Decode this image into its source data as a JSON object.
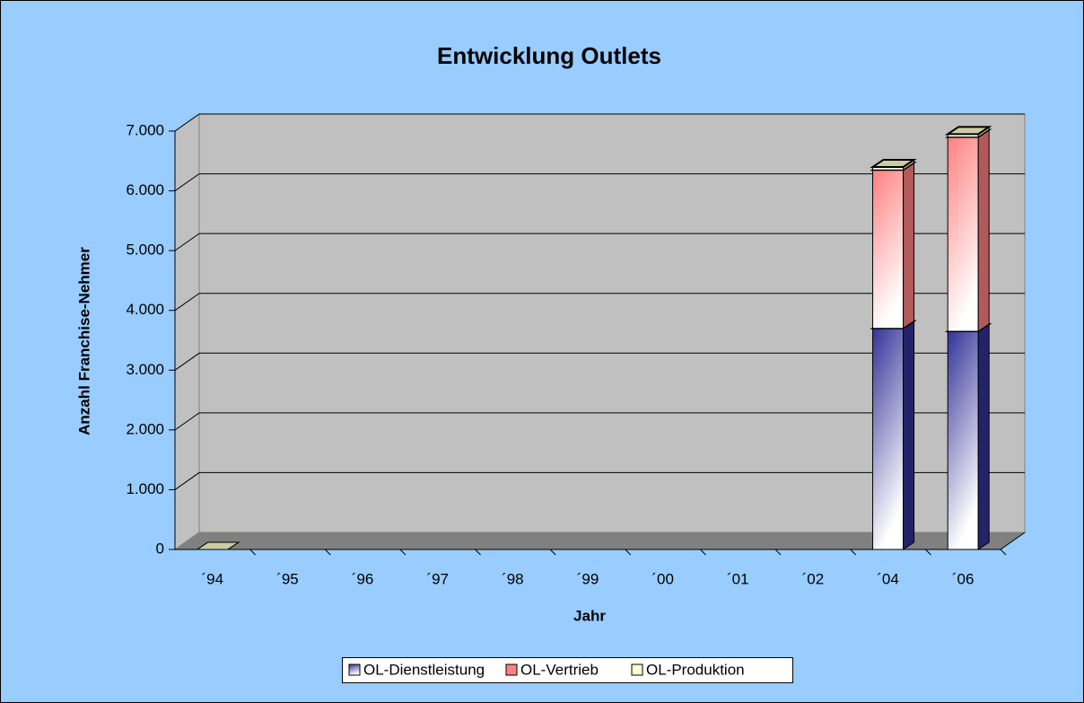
{
  "chart_data": {
    "type": "bar3d_stacked",
    "title": "Entwicklung Outlets",
    "x_label": "Jahr",
    "y_label": "Anzahl Franchise-Nehmer",
    "categories": [
      "´94",
      "´95",
      "´96",
      "´97",
      "´98",
      "´99",
      "´00",
      "´01",
      "´02",
      "´04",
      "´06"
    ],
    "series": [
      {
        "name": "OL-Dienstleistung",
        "color": "#333399",
        "values": [
          0,
          null,
          null,
          null,
          null,
          null,
          null,
          null,
          null,
          3700,
          3650
        ]
      },
      {
        "name": "OL-Vertrieb",
        "color": "#ff8080",
        "values": [
          0,
          null,
          null,
          null,
          null,
          null,
          null,
          null,
          null,
          2650,
          3250
        ]
      },
      {
        "name": "OL-Produktion",
        "color": "#ffffcc",
        "values": [
          0,
          null,
          null,
          null,
          null,
          null,
          null,
          null,
          null,
          50,
          50
        ]
      }
    ],
    "ylim": [
      0,
      7000
    ],
    "yticks": [
      0,
      {
        "value": 1000,
        "label": "1.000"
      },
      {
        "value": 2000,
        "label": "2.000"
      },
      {
        "value": 3000,
        "label": "3.000"
      },
      {
        "value": 4000,
        "label": "4.000"
      },
      {
        "value": 5000,
        "label": "5.000"
      },
      {
        "value": 6000,
        "label": "6.000"
      },
      {
        "value": 7000,
        "label": "7.000"
      }
    ],
    "grid": true,
    "legend": "bottom"
  }
}
